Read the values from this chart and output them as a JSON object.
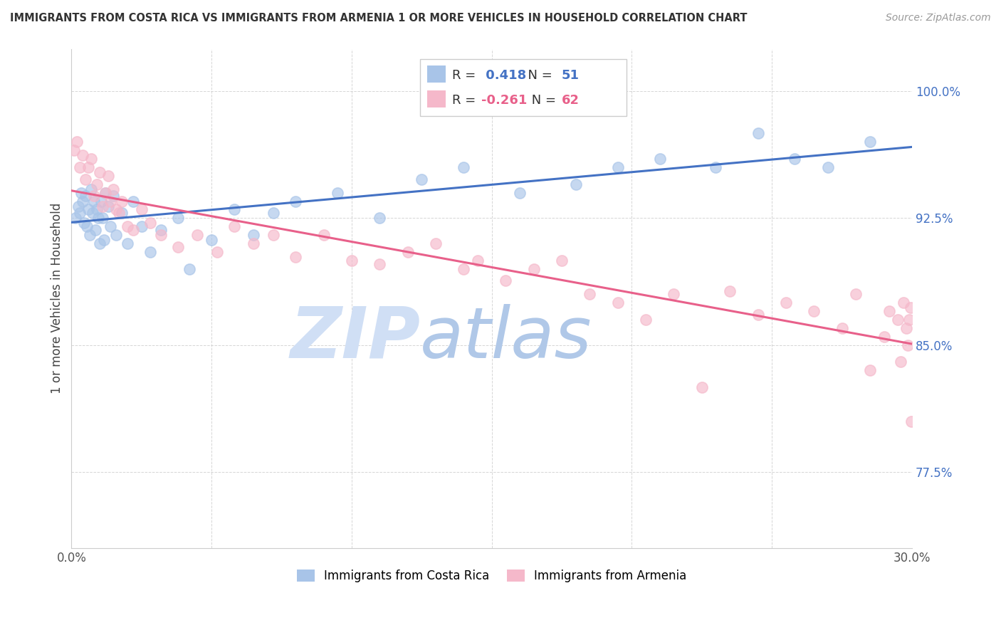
{
  "title": "IMMIGRANTS FROM COSTA RICA VS IMMIGRANTS FROM ARMENIA 1 OR MORE VEHICLES IN HOUSEHOLD CORRELATION CHART",
  "source": "Source: ZipAtlas.com",
  "ylabel": "1 or more Vehicles in Household",
  "xlim": [
    0.0,
    30.0
  ],
  "ylim": [
    73.0,
    102.5
  ],
  "xticks": [
    0.0,
    5.0,
    10.0,
    15.0,
    20.0,
    25.0,
    30.0
  ],
  "yticks": [
    77.5,
    85.0,
    92.5,
    100.0
  ],
  "blue_R": 0.418,
  "blue_N": 51,
  "pink_R": -0.261,
  "pink_N": 62,
  "legend_label_blue": "Immigrants from Costa Rica",
  "legend_label_pink": "Immigrants from Armenia",
  "blue_color": "#a8c4e8",
  "pink_color": "#f5b8ca",
  "trend_blue": "#4472c4",
  "trend_pink": "#e8608a",
  "watermark_zip": "ZIP",
  "watermark_atlas": "atlas",
  "watermark_color_zip": "#d0dff5",
  "watermark_color_atlas": "#b8cce8",
  "blue_x": [
    0.15,
    0.25,
    0.3,
    0.35,
    0.4,
    0.45,
    0.5,
    0.55,
    0.6,
    0.65,
    0.7,
    0.75,
    0.8,
    0.85,
    0.9,
    0.95,
    1.0,
    1.05,
    1.1,
    1.15,
    1.2,
    1.3,
    1.4,
    1.5,
    1.6,
    1.8,
    2.0,
    2.2,
    2.5,
    2.8,
    3.2,
    3.8,
    4.2,
    5.0,
    5.8,
    6.5,
    7.2,
    8.0,
    9.5,
    11.0,
    12.5,
    14.0,
    16.0,
    18.0,
    19.5,
    21.0,
    23.0,
    24.5,
    25.8,
    27.0,
    28.5
  ],
  "blue_y": [
    92.5,
    93.2,
    92.8,
    94.0,
    93.5,
    92.2,
    93.8,
    92.0,
    93.0,
    91.5,
    94.2,
    92.8,
    93.5,
    91.8,
    93.0,
    92.5,
    91.0,
    93.5,
    92.5,
    91.2,
    94.0,
    93.2,
    92.0,
    93.8,
    91.5,
    92.8,
    91.0,
    93.5,
    92.0,
    90.5,
    91.8,
    92.5,
    89.5,
    91.2,
    93.0,
    91.5,
    92.8,
    93.5,
    94.0,
    92.5,
    94.8,
    95.5,
    94.0,
    94.5,
    95.5,
    96.0,
    95.5,
    97.5,
    96.0,
    95.5,
    97.0
  ],
  "pink_x": [
    0.1,
    0.2,
    0.3,
    0.4,
    0.5,
    0.6,
    0.7,
    0.8,
    0.9,
    1.0,
    1.1,
    1.2,
    1.3,
    1.4,
    1.5,
    1.6,
    1.7,
    1.8,
    2.0,
    2.2,
    2.5,
    2.8,
    3.2,
    3.8,
    4.5,
    5.2,
    5.8,
    6.5,
    7.2,
    8.0,
    9.0,
    10.0,
    11.0,
    12.0,
    13.0,
    14.0,
    14.5,
    15.5,
    16.5,
    17.5,
    18.5,
    19.5,
    20.5,
    21.5,
    22.5,
    23.5,
    24.5,
    25.5,
    26.5,
    27.5,
    28.0,
    28.5,
    29.0,
    29.2,
    29.5,
    29.6,
    29.7,
    29.8,
    29.85,
    29.9,
    29.95,
    29.98
  ],
  "pink_y": [
    96.5,
    97.0,
    95.5,
    96.2,
    94.8,
    95.5,
    96.0,
    93.8,
    94.5,
    95.2,
    93.2,
    94.0,
    95.0,
    93.5,
    94.2,
    93.0,
    92.8,
    93.5,
    92.0,
    91.8,
    93.0,
    92.2,
    91.5,
    90.8,
    91.5,
    90.5,
    92.0,
    91.0,
    91.5,
    90.2,
    91.5,
    90.0,
    89.8,
    90.5,
    91.0,
    89.5,
    90.0,
    88.8,
    89.5,
    90.0,
    88.0,
    87.5,
    86.5,
    88.0,
    82.5,
    88.2,
    86.8,
    87.5,
    87.0,
    86.0,
    88.0,
    83.5,
    85.5,
    87.0,
    86.5,
    84.0,
    87.5,
    86.0,
    85.0,
    86.5,
    87.2,
    80.5
  ]
}
